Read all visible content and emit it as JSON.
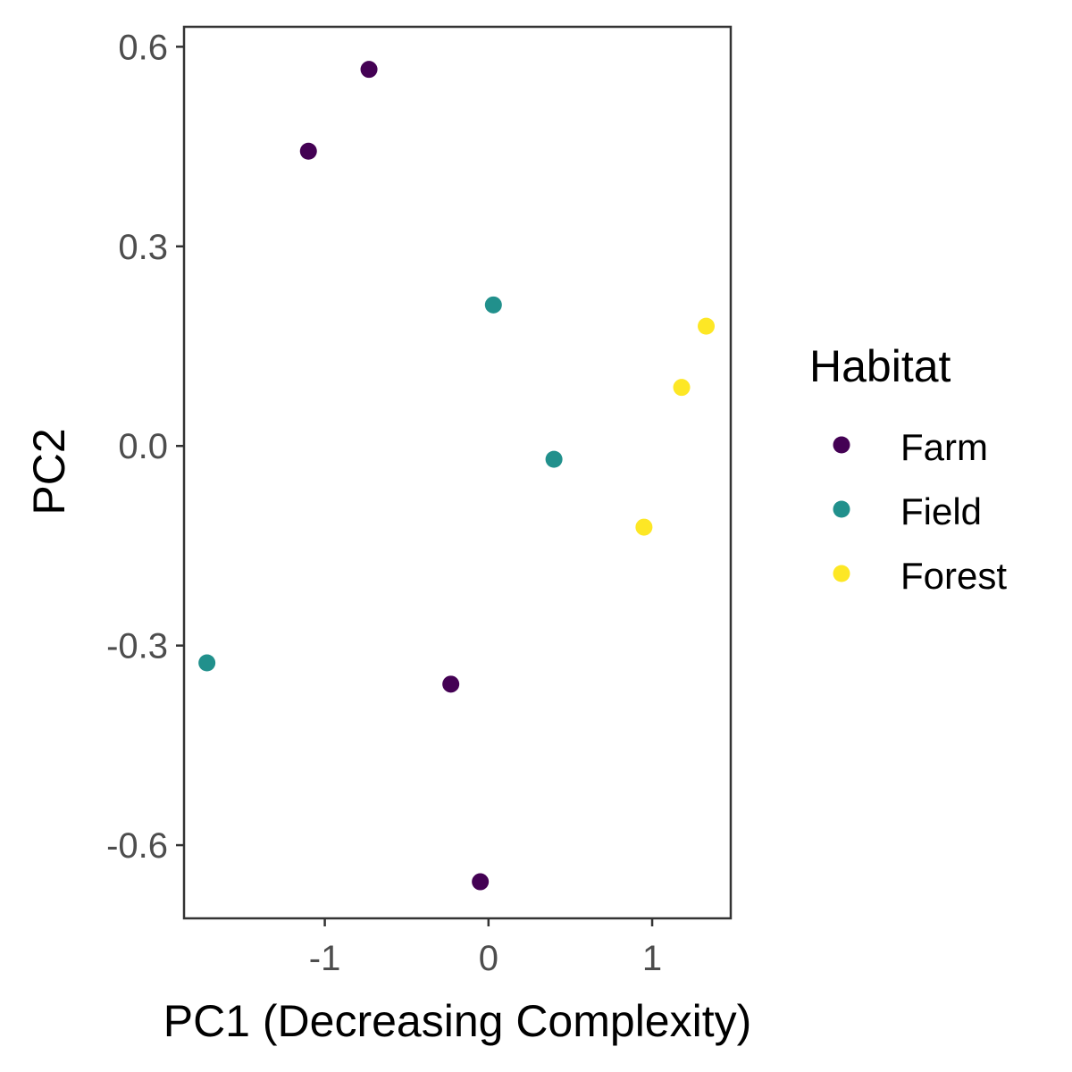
{
  "chart_data": {
    "type": "scatter",
    "xlabel": "PC1 (Decreasing Complexity)",
    "ylabel": "PC2",
    "xlim": [
      -1.86,
      1.48
    ],
    "ylim": [
      -0.71,
      0.63
    ],
    "x_ticks": [
      {
        "value": -1,
        "label": "-1"
      },
      {
        "value": 0,
        "label": "0"
      },
      {
        "value": 1,
        "label": "1"
      }
    ],
    "y_ticks": [
      {
        "value": 0.6,
        "label": "0.6"
      },
      {
        "value": 0.3,
        "label": "0.3"
      },
      {
        "value": 0.0,
        "label": "0.0"
      },
      {
        "value": -0.3,
        "label": "-0.3"
      },
      {
        "value": -0.6,
        "label": "-0.6"
      }
    ],
    "grid": false,
    "legend": {
      "title": "Habitat",
      "position": "right"
    },
    "series": [
      {
        "name": "Farm",
        "color": "#440154",
        "points": [
          {
            "x": -0.73,
            "y": 0.566
          },
          {
            "x": -1.1,
            "y": 0.443
          },
          {
            "x": -0.23,
            "y": -0.358
          },
          {
            "x": -0.05,
            "y": -0.655
          }
        ]
      },
      {
        "name": "Field",
        "color": "#21908C",
        "points": [
          {
            "x": 0.03,
            "y": 0.212
          },
          {
            "x": 0.4,
            "y": -0.02
          },
          {
            "x": -1.72,
            "y": -0.326
          }
        ]
      },
      {
        "name": "Forest",
        "color": "#FDE725",
        "points": [
          {
            "x": 1.33,
            "y": 0.18
          },
          {
            "x": 1.18,
            "y": 0.088
          },
          {
            "x": 0.95,
            "y": -0.122
          }
        ]
      }
    ]
  }
}
